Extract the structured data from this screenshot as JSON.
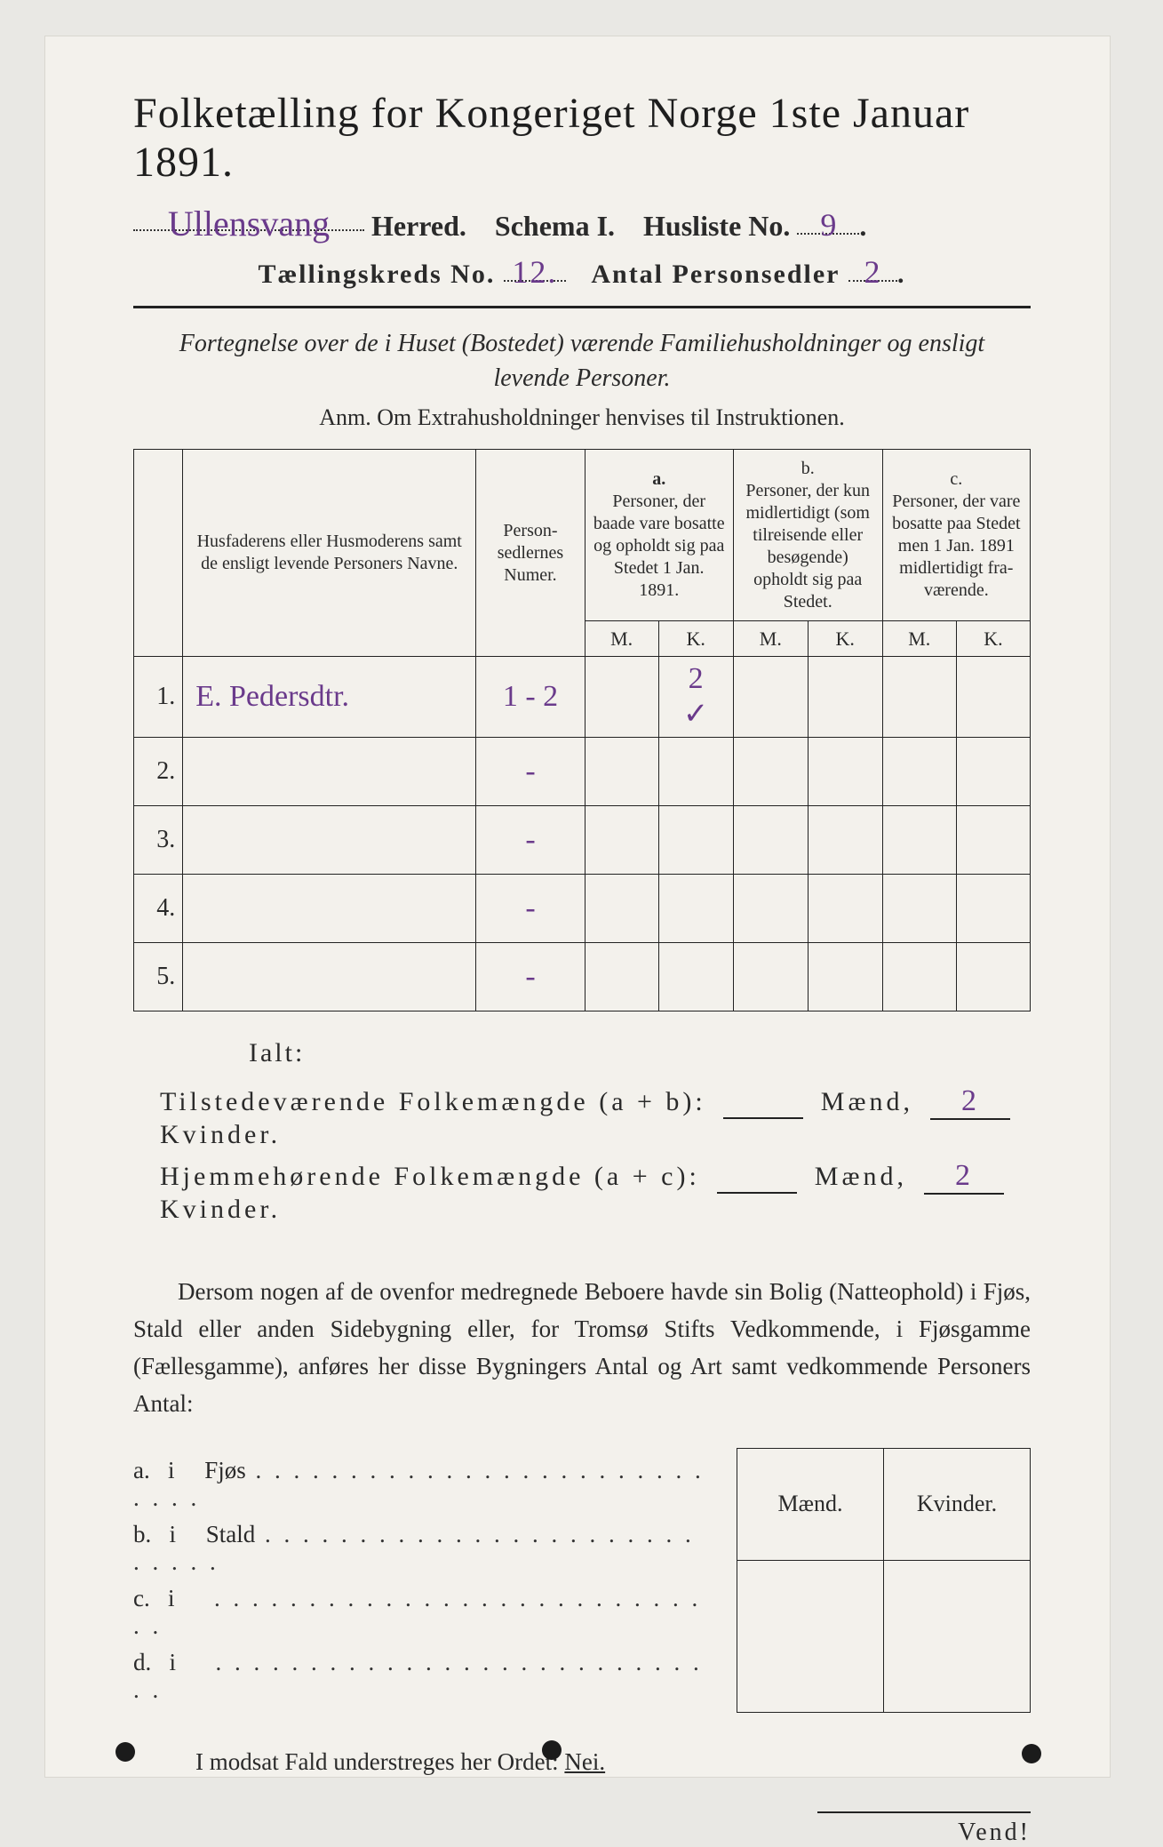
{
  "background_color": "#e9e8e4",
  "paper_color": "#f3f1ec",
  "ink_color": "#2a2a2a",
  "handwriting_color": "#6a3a8b",
  "header": {
    "title": "Folketælling for Kongeriget Norge 1ste Januar 1891.",
    "herred_hand": "Ullensvang",
    "herred_label": "Herred.",
    "schema_label": "Schema I.",
    "husliste_label": "Husliste No.",
    "husliste_hand": "9",
    "kreds_label": "Tællingskreds No.",
    "kreds_hand": "12.",
    "antal_label": "Antal Personsedler",
    "antal_hand": "2"
  },
  "fortegnelse": {
    "line1": "Fortegnelse over de i Huset (Bostedet) værende Familiehusholdninger og ensligt",
    "line2": "levende Personer.",
    "anm": "Anm.  Om Extrahusholdninger henvises til Instruktionen."
  },
  "table": {
    "col_name": "Husfaderens eller Husmode­rens samt de ensligt levende Personers Navne.",
    "col_num": "Person­sedler­nes Numer.",
    "col_a_head": "a.",
    "col_a": "Personer, der baade vare bo­satte og opholdt sig paa Stedet 1 Jan. 1891.",
    "col_b_head": "b.",
    "col_b": "Personer, der kun midler­tidigt (som tilreisende eller besøgende) opholdt sig paa Stedet.",
    "col_c_head": "c.",
    "col_c": "Personer, der vare bosatte paa Stedet men 1 Jan. 1891 midler­tidigt fra­værende.",
    "M": "M.",
    "K": "K.",
    "rows": [
      {
        "n": "1.",
        "name": "E. Pedersdtr.",
        "num": "1 - 2",
        "aM": "",
        "aK": "2",
        "aK2": "✓",
        "bM": "",
        "bK": "",
        "cM": "",
        "cK": ""
      },
      {
        "n": "2.",
        "name": "",
        "num": "-",
        "aM": "",
        "aK": "",
        "bM": "",
        "bK": "",
        "cM": "",
        "cK": ""
      },
      {
        "n": "3.",
        "name": "",
        "num": "-",
        "aM": "",
        "aK": "",
        "bM": "",
        "bK": "",
        "cM": "",
        "cK": ""
      },
      {
        "n": "4.",
        "name": "",
        "num": "-",
        "aM": "",
        "aK": "",
        "bM": "",
        "bK": "",
        "cM": "",
        "cK": ""
      },
      {
        "n": "5.",
        "name": "",
        "num": "-",
        "aM": "",
        "aK": "",
        "bM": "",
        "bK": "",
        "cM": "",
        "cK": ""
      }
    ]
  },
  "totals": {
    "ialt": "Ialt:",
    "tilst_label": "Tilstedeværende Folkemængde (a + b):",
    "hjem_label": "Hjemmehørende Folkemængde (a + c):",
    "maend": "Mænd,",
    "kvinder": "Kvinder.",
    "tilst_m": "",
    "tilst_k": "2",
    "hjem_m": "",
    "hjem_k": "2"
  },
  "paragraph": "Dersom nogen af de ovenfor medregnede Beboere havde sin Bolig (Natte­ophold) i Fjøs, Stald eller anden Sidebygning eller, for Tromsø Stifts Ved­kommende, i Fjøsgamme (Fællesgamme), anføres her disse Bygningers Antal og Art samt vedkommende Personers Antal:",
  "sidetable": {
    "maend": "Mænd.",
    "kvinder": "Kvinder.",
    "rows": [
      {
        "lbl": "a.",
        "i": "i",
        "txt": "Fjøs"
      },
      {
        "lbl": "b.",
        "i": "i",
        "txt": "Stald"
      },
      {
        "lbl": "c.",
        "i": "i",
        "txt": ""
      },
      {
        "lbl": "d.",
        "i": "i",
        "txt": ""
      }
    ]
  },
  "nei": "I modsat Fald understreges her Ordet: ",
  "nei_word": "Nei.",
  "vend": "Vend!"
}
